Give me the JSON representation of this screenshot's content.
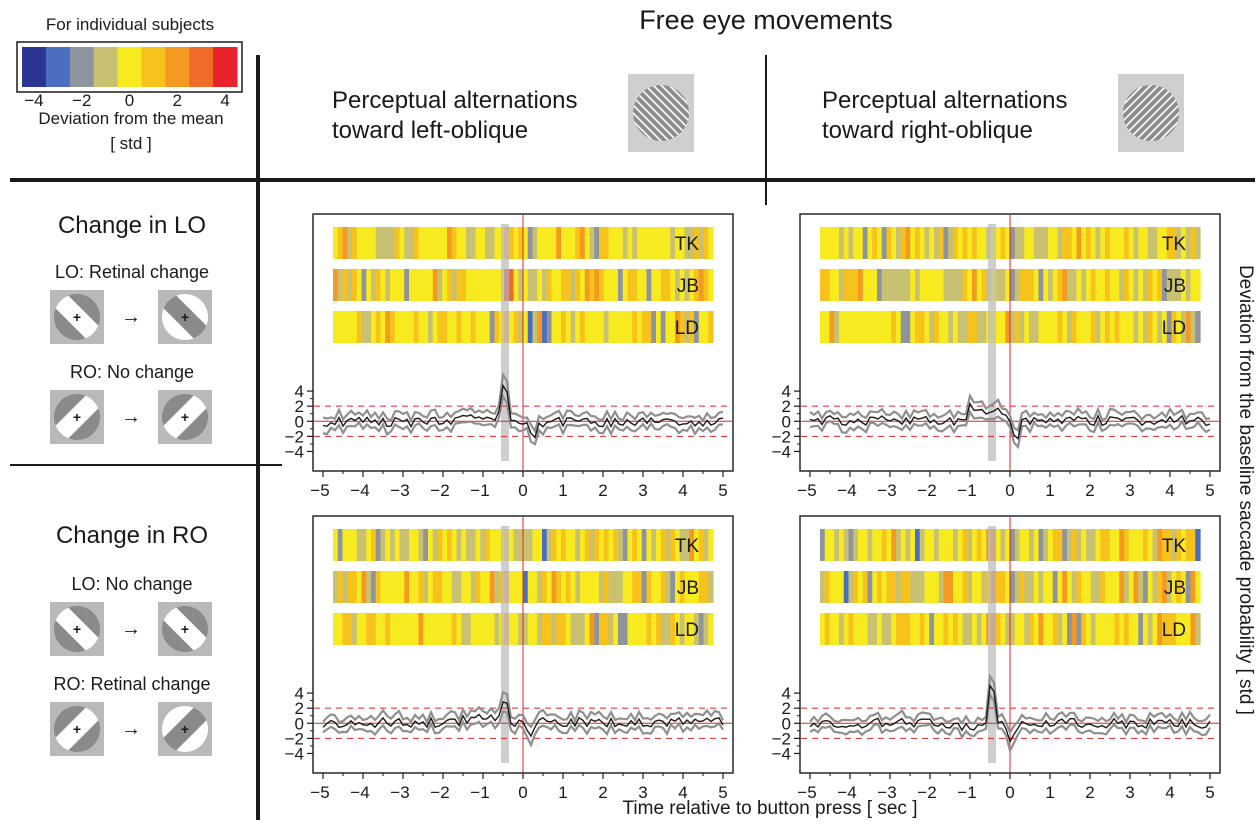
{
  "figure": {
    "title": "Free eye movements",
    "x_label": "Time relative to button press [ sec ]",
    "y_label": "Deviation from the baseline saccade probability [ std ]"
  },
  "colorbar": {
    "title": "For individual subjects",
    "label_line1": "Deviation from the mean",
    "label_line2": "[ std ]",
    "tick_labels": [
      "−4",
      "−2",
      "0",
      "2",
      "4"
    ],
    "colors": [
      "#2b3592",
      "#4a6fc0",
      "#8e949e",
      "#c8c172",
      "#f7ea1f",
      "#f8c21d",
      "#f59a21",
      "#f06a28",
      "#e8232a"
    ],
    "levels": [
      -4,
      -3,
      -2,
      -1,
      0,
      1,
      2,
      3,
      4
    ]
  },
  "columns": [
    {
      "line1": "Perceptual alternations",
      "line2": "toward left-oblique",
      "stimulus_icon": "left-oblique-grating-icon"
    },
    {
      "line1": "Perceptual alternations",
      "line2": "toward right-oblique",
      "stimulus_icon": "right-oblique-grating-icon"
    }
  ],
  "rows": [
    {
      "title": "Change in LO",
      "cond1": "LO: Retinal change",
      "cond2": "RO: No change"
    },
    {
      "title": "Change in RO",
      "cond1": "LO: No change",
      "cond2": "RO: Retinal change"
    }
  ],
  "subjects": [
    "TK",
    "JB",
    "LD"
  ],
  "chart_data": [
    {
      "type": "line",
      "panel": "Change in LO / toward left-oblique",
      "xlim": [
        -5,
        5
      ],
      "ylim": [
        -5,
        6
      ],
      "x_ticks": [
        "−5",
        "−4",
        "−3",
        "−2",
        "−1",
        "0",
        "1",
        "2",
        "3",
        "4",
        "5"
      ],
      "y_ticks": [
        "4",
        "2",
        "0",
        "−2",
        "−4"
      ],
      "threshold_lines": [
        2,
        -2
      ],
      "shaded_interval": [
        -0.55,
        -0.35
      ],
      "peak_x": -0.45,
      "peak_mean": 5.5,
      "bias": -0.3,
      "dip_x": 0.25,
      "dip_mean": -1.8,
      "bump_x": -1.0,
      "bump_mean": 0.8,
      "seed": 11
    },
    {
      "type": "line",
      "panel": "Change in LO / toward right-oblique",
      "xlim": [
        -5,
        5
      ],
      "ylim": [
        -5,
        6
      ],
      "x_ticks": [
        "−5",
        "−4",
        "−3",
        "−2",
        "−1",
        "0",
        "1",
        "2",
        "3",
        "4",
        "5"
      ],
      "y_ticks": [
        "4",
        "2",
        "0",
        "−2",
        "−4"
      ],
      "threshold_lines": [
        2,
        -2
      ],
      "shaded_interval": [
        -0.55,
        -0.35
      ],
      "peak_x": -0.95,
      "peak_mean": 1.8,
      "bias": 0.2,
      "dip_x": 0.15,
      "dip_mean": -2.4,
      "bump_x": -0.4,
      "bump_mean": 1.2,
      "seed": 23
    },
    {
      "type": "line",
      "panel": "Change in RO / toward left-oblique",
      "xlim": [
        -5,
        5
      ],
      "ylim": [
        -5,
        6
      ],
      "x_ticks": [
        "−5",
        "−4",
        "−3",
        "−2",
        "−1",
        "0",
        "1",
        "2",
        "3",
        "4",
        "5"
      ],
      "y_ticks": [
        "4",
        "2",
        "0",
        "−2",
        "−4"
      ],
      "threshold_lines": [
        2,
        -2
      ],
      "shaded_interval": [
        -0.55,
        -0.35
      ],
      "peak_x": -0.45,
      "peak_mean": 2.8,
      "bias": 0.2,
      "dip_x": 0.15,
      "dip_mean": -1.6,
      "bump_x": -1.0,
      "bump_mean": 1.0,
      "seed": 37
    },
    {
      "type": "line",
      "panel": "Change in RO / toward right-oblique",
      "xlim": [
        -5,
        5
      ],
      "ylim": [
        -5,
        6
      ],
      "x_ticks": [
        "−5",
        "−4",
        "−3",
        "−2",
        "−1",
        "0",
        "1",
        "2",
        "3",
        "4",
        "5"
      ],
      "y_ticks": [
        "4",
        "2",
        "0",
        "−2",
        "−4"
      ],
      "threshold_lines": [
        2,
        -2
      ],
      "shaded_interval": [
        -0.55,
        -0.35
      ],
      "peak_x": -0.45,
      "peak_mean": 6.0,
      "bias": 0.0,
      "dip_x": 0.05,
      "dip_mean": -2.2,
      "bump_x": -1.0,
      "bump_mean": -0.5,
      "seed": 53
    }
  ]
}
